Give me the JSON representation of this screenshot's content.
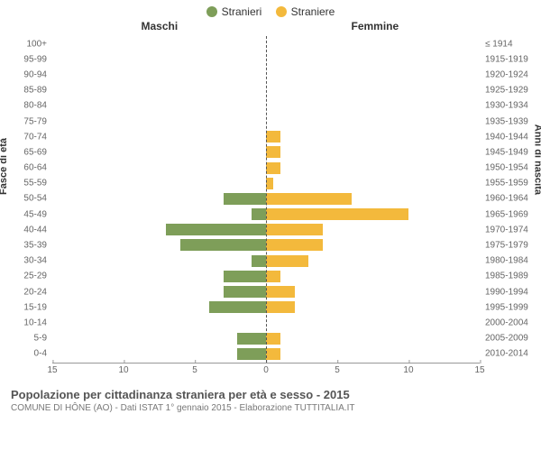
{
  "legend": {
    "male": {
      "label": "Stranieri",
      "color": "#7e9e59"
    },
    "female": {
      "label": "Straniere",
      "color": "#f3b93c"
    }
  },
  "header": {
    "left_label": "Maschi",
    "right_label": "Femmine"
  },
  "y_axis_left_title": "Fasce di età",
  "y_axis_right_title": "Anni di nascita",
  "x_axis": {
    "min": -15,
    "max": 15,
    "ticks": [
      15,
      10,
      5,
      0,
      5,
      10,
      15
    ],
    "tick_positions_pct": [
      0,
      16.67,
      33.33,
      50,
      66.67,
      83.33,
      100
    ]
  },
  "unit_width_pct": 3.333,
  "rows": [
    {
      "age": "100+",
      "birth": "≤ 1914",
      "m": 0,
      "f": 0
    },
    {
      "age": "95-99",
      "birth": "1915-1919",
      "m": 0,
      "f": 0
    },
    {
      "age": "90-94",
      "birth": "1920-1924",
      "m": 0,
      "f": 0
    },
    {
      "age": "85-89",
      "birth": "1925-1929",
      "m": 0,
      "f": 0
    },
    {
      "age": "80-84",
      "birth": "1930-1934",
      "m": 0,
      "f": 0
    },
    {
      "age": "75-79",
      "birth": "1935-1939",
      "m": 0,
      "f": 0
    },
    {
      "age": "70-74",
      "birth": "1940-1944",
      "m": 0,
      "f": 1
    },
    {
      "age": "65-69",
      "birth": "1945-1949",
      "m": 0,
      "f": 1
    },
    {
      "age": "60-64",
      "birth": "1950-1954",
      "m": 0,
      "f": 1
    },
    {
      "age": "55-59",
      "birth": "1955-1959",
      "m": 0,
      "f": 0.5
    },
    {
      "age": "50-54",
      "birth": "1960-1964",
      "m": 3,
      "f": 6
    },
    {
      "age": "45-49",
      "birth": "1965-1969",
      "m": 1,
      "f": 10
    },
    {
      "age": "40-44",
      "birth": "1970-1974",
      "m": 7,
      "f": 4
    },
    {
      "age": "35-39",
      "birth": "1975-1979",
      "m": 6,
      "f": 4
    },
    {
      "age": "30-34",
      "birth": "1980-1984",
      "m": 1,
      "f": 3
    },
    {
      "age": "25-29",
      "birth": "1985-1989",
      "m": 3,
      "f": 1
    },
    {
      "age": "20-24",
      "birth": "1990-1994",
      "m": 3,
      "f": 2
    },
    {
      "age": "15-19",
      "birth": "1995-1999",
      "m": 4,
      "f": 2
    },
    {
      "age": "10-14",
      "birth": "2000-2004",
      "m": 0,
      "f": 0
    },
    {
      "age": "5-9",
      "birth": "2005-2009",
      "m": 2,
      "f": 1
    },
    {
      "age": "0-4",
      "birth": "2010-2014",
      "m": 2,
      "f": 1
    }
  ],
  "footer": {
    "title": "Popolazione per cittadinanza straniera per età e sesso - 2015",
    "subtitle": "COMUNE DI HÔNE (AO) - Dati ISTAT 1° gennaio 2015 - Elaborazione TUTTITALIA.IT"
  },
  "colors": {
    "background": "#ffffff",
    "axis_line": "#999999",
    "centerline": "#555555",
    "tick_text": "#666666"
  }
}
